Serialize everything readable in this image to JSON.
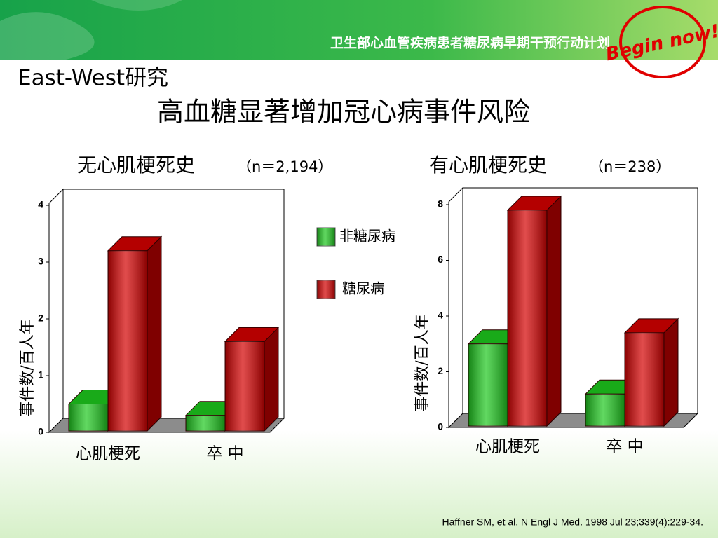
{
  "header": {
    "banner": "卫生部心血管疾病患者糖尿病早期干预行动计划",
    "logo": "Begin now!"
  },
  "study": "East-West研究",
  "title": "高血糖显著增加冠心病事件风险",
  "citation": "Haffner SM, et al. N Engl J Med. 1998 Jul 23;339(4):229-34.",
  "chart_data": [
    {
      "type": "bar3d",
      "title": "无心肌梗死史",
      "subtitle": "（n＝2,194）",
      "y_label": "事件数/百人年",
      "categories": [
        "心肌梗死",
        "卒 中"
      ],
      "series": [
        {
          "name": "非糖尿病",
          "color": "#1ec81e",
          "values": [
            0.5,
            0.3
          ]
        },
        {
          "name": "糖尿病",
          "color": "#d40000",
          "values": [
            3.2,
            1.6
          ]
        }
      ],
      "ylim": [
        0,
        4
      ],
      "yticks": [
        0,
        1,
        2,
        3,
        4
      ]
    },
    {
      "type": "bar3d",
      "title": "有心肌梗死史",
      "subtitle": "（n＝238）",
      "y_label": "事件数/百人年",
      "categories": [
        "心肌梗死",
        "卒 中"
      ],
      "series": [
        {
          "color": "#1ec81e",
          "values": [
            3.0,
            1.2
          ]
        },
        {
          "color": "#d40000",
          "values": [
            7.8,
            3.4
          ]
        }
      ],
      "ylim": [
        0,
        8
      ],
      "yticks": [
        0,
        2,
        4,
        6,
        8
      ]
    }
  ]
}
